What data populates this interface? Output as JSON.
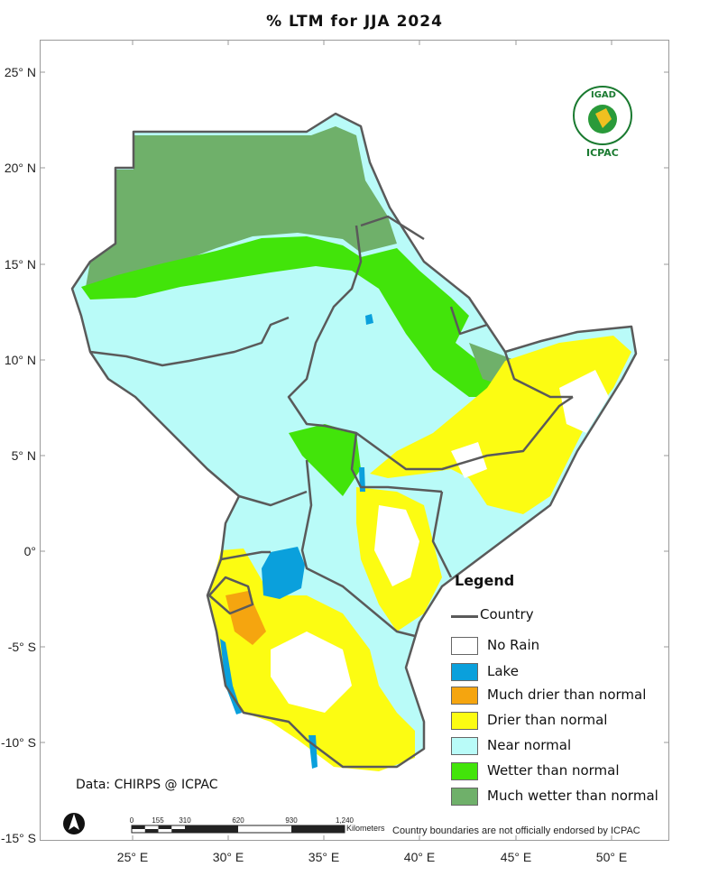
{
  "title": "% LTM  for  JJA 2024",
  "lat_labels": [
    "25° N",
    "20° N",
    "15° N",
    "10° N",
    "5° N",
    "0°",
    "-5° S",
    "-10° S",
    "-15° S"
  ],
  "lon_labels": [
    "25° E",
    "30° E",
    "35° E",
    "40° E",
    "45° E",
    "50° E"
  ],
  "legend": {
    "title": "Legend",
    "country_label": "Country",
    "items": [
      {
        "label": "No Rain",
        "color": "#ffffff"
      },
      {
        "label": "Lake",
        "color": "#0aa0dc"
      },
      {
        "label": "Much drier than normal",
        "color": "#f5a50f"
      },
      {
        "label": "Drier than normal",
        "color": "#fcfc12"
      },
      {
        "label": "Near normal",
        "color": "#b9fbf8"
      },
      {
        "label": "Wetter than normal",
        "color": "#42e40a"
      },
      {
        "label": "Much wetter than normal",
        "color": "#6fb06a"
      }
    ]
  },
  "source": "Data: CHIRPS @ ICPAC",
  "disclaimer": "Country boundaries are not officially endorsed by ICPAC",
  "scale_bar": {
    "unit": "Kilometers",
    "ticks": [
      "0",
      "155",
      "310",
      "620",
      "930",
      "1,240"
    ]
  },
  "logo": {
    "top_text": "IGAD",
    "bottom_text": "ICPAC"
  },
  "colors": {
    "country_border": "#5a5a5a",
    "lake": "#0aa0dc",
    "near_normal": "#b9fbf8",
    "wetter": "#42e40a",
    "much_wetter": "#6fb06a",
    "drier": "#fcfc12",
    "much_drier": "#f5a50f"
  }
}
